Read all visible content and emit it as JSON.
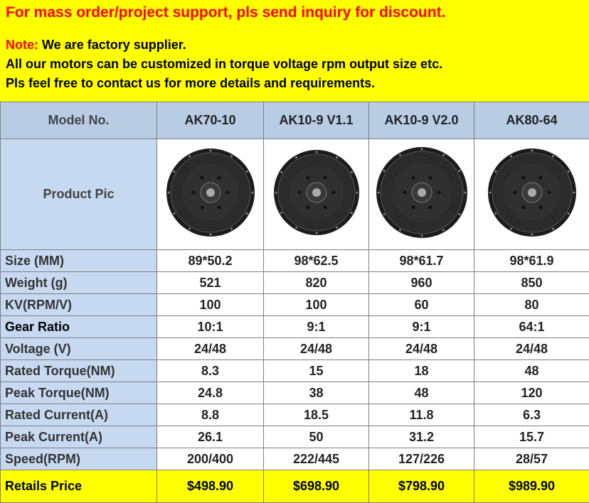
{
  "banner": {
    "headline": "For mass order/project support, pls send inquiry for discount.",
    "note_label": "Note:",
    "note_text": "We are factory supplier.",
    "lines": [
      "All our motors can be customized in torque voltage rpm output size etc.",
      "Pls feel free to contact us for more details and requirements."
    ]
  },
  "table": {
    "header": [
      "Model No.",
      "AK70-10",
      "AK10-9 V1.1",
      "AK10-9 V2.0",
      "AK80-64"
    ],
    "product_pic_label": "Product Pic",
    "rows": [
      [
        "Size (MM)",
        "89*50.2",
        "98*62.5",
        "98*61.7",
        "98*61.9"
      ],
      [
        "Weight (g)",
        "521",
        "820",
        "960",
        "850"
      ],
      [
        "KV(RPM/V)",
        "100",
        "100",
        "60",
        "80"
      ],
      [
        "Gear Ratio",
        "10:1",
        "9:1",
        "9:1",
        "64:1"
      ],
      [
        "Voltage (V)",
        "24/48",
        "24/48",
        "24/48",
        "24/48"
      ],
      [
        "Rated Torque(NM)",
        "8.3",
        "15",
        "18",
        "48"
      ],
      [
        "Peak Torque(NM)",
        "24.8",
        "38",
        "48",
        "120"
      ],
      [
        "Rated Current(A)",
        "8.8",
        "18.5",
        "11.8",
        "6.3"
      ],
      [
        "Peak Current(A)",
        "26.1",
        "50",
        "31.2",
        "15.7"
      ],
      [
        "Speed(RPM)",
        "200/400",
        "222/445",
        "127/226",
        "28/57"
      ]
    ],
    "price_row": [
      "Retails Price",
      "$498.90",
      "$698.90",
      "$798.90",
      "$989.90"
    ]
  }
}
